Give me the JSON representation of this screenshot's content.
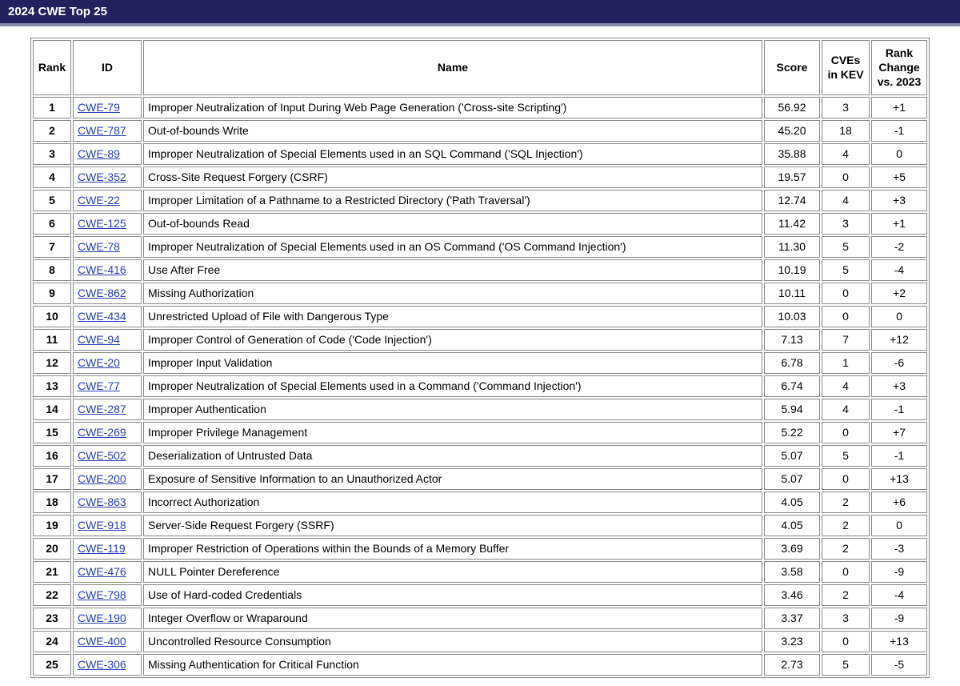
{
  "header": {
    "title": "2024 CWE Top 25"
  },
  "table": {
    "columns": {
      "rank": "Rank",
      "id": "ID",
      "name": "Name",
      "score": "Score",
      "kev": "CVEs in KEV",
      "change": "Rank Change vs. 2023"
    },
    "rows": [
      {
        "rank": "1",
        "id": "CWE-79",
        "name": "Improper Neutralization of Input During Web Page Generation ('Cross-site Scripting')",
        "score": "56.92",
        "kev": "3",
        "change": "+1"
      },
      {
        "rank": "2",
        "id": "CWE-787",
        "name": "Out-of-bounds Write",
        "score": "45.20",
        "kev": "18",
        "change": "-1"
      },
      {
        "rank": "3",
        "id": "CWE-89",
        "name": "Improper Neutralization of Special Elements used in an SQL Command ('SQL Injection')",
        "score": "35.88",
        "kev": "4",
        "change": "0"
      },
      {
        "rank": "4",
        "id": "CWE-352",
        "name": "Cross-Site Request Forgery (CSRF)",
        "score": "19.57",
        "kev": "0",
        "change": "+5"
      },
      {
        "rank": "5",
        "id": "CWE-22",
        "name": "Improper Limitation of a Pathname to a Restricted Directory ('Path Traversal')",
        "score": "12.74",
        "kev": "4",
        "change": "+3"
      },
      {
        "rank": "6",
        "id": "CWE-125",
        "name": "Out-of-bounds Read",
        "score": "11.42",
        "kev": "3",
        "change": "+1"
      },
      {
        "rank": "7",
        "id": "CWE-78",
        "name": "Improper Neutralization of Special Elements used in an OS Command ('OS Command Injection')",
        "score": "11.30",
        "kev": "5",
        "change": "-2"
      },
      {
        "rank": "8",
        "id": "CWE-416",
        "name": "Use After Free",
        "score": "10.19",
        "kev": "5",
        "change": "-4"
      },
      {
        "rank": "9",
        "id": "CWE-862",
        "name": "Missing Authorization",
        "score": "10.11",
        "kev": "0",
        "change": "+2"
      },
      {
        "rank": "10",
        "id": "CWE-434",
        "name": "Unrestricted Upload of File with Dangerous Type",
        "score": "10.03",
        "kev": "0",
        "change": "0"
      },
      {
        "rank": "11",
        "id": "CWE-94",
        "name": "Improper Control of Generation of Code ('Code Injection')",
        "score": "7.13",
        "kev": "7",
        "change": "+12"
      },
      {
        "rank": "12",
        "id": "CWE-20",
        "name": "Improper Input Validation",
        "score": "6.78",
        "kev": "1",
        "change": "-6"
      },
      {
        "rank": "13",
        "id": "CWE-77",
        "name": "Improper Neutralization of Special Elements used in a Command ('Command Injection')",
        "score": "6.74",
        "kev": "4",
        "change": "+3"
      },
      {
        "rank": "14",
        "id": "CWE-287",
        "name": "Improper Authentication",
        "score": "5.94",
        "kev": "4",
        "change": "-1"
      },
      {
        "rank": "15",
        "id": "CWE-269",
        "name": "Improper Privilege Management",
        "score": "5.22",
        "kev": "0",
        "change": "+7"
      },
      {
        "rank": "16",
        "id": "CWE-502",
        "name": "Deserialization of Untrusted Data",
        "score": "5.07",
        "kev": "5",
        "change": "-1"
      },
      {
        "rank": "17",
        "id": "CWE-200",
        "name": "Exposure of Sensitive Information to an Unauthorized Actor",
        "score": "5.07",
        "kev": "0",
        "change": "+13"
      },
      {
        "rank": "18",
        "id": "CWE-863",
        "name": "Incorrect Authorization",
        "score": "4.05",
        "kev": "2",
        "change": "+6"
      },
      {
        "rank": "19",
        "id": "CWE-918",
        "name": "Server-Side Request Forgery (SSRF)",
        "score": "4.05",
        "kev": "2",
        "change": "0"
      },
      {
        "rank": "20",
        "id": "CWE-119",
        "name": "Improper Restriction of Operations within the Bounds of a Memory Buffer",
        "score": "3.69",
        "kev": "2",
        "change": "-3"
      },
      {
        "rank": "21",
        "id": "CWE-476",
        "name": "NULL Pointer Dereference",
        "score": "3.58",
        "kev": "0",
        "change": "-9"
      },
      {
        "rank": "22",
        "id": "CWE-798",
        "name": "Use of Hard-coded Credentials",
        "score": "3.46",
        "kev": "2",
        "change": "-4"
      },
      {
        "rank": "23",
        "id": "CWE-190",
        "name": "Integer Overflow or Wraparound",
        "score": "3.37",
        "kev": "3",
        "change": "-9"
      },
      {
        "rank": "24",
        "id": "CWE-400",
        "name": "Uncontrolled Resource Consumption",
        "score": "3.23",
        "kev": "0",
        "change": "+13"
      },
      {
        "rank": "25",
        "id": "CWE-306",
        "name": "Missing Authentication for Critical Function",
        "score": "2.73",
        "kev": "5",
        "change": "-5"
      }
    ]
  },
  "colors": {
    "header_bg": "#21215e",
    "header_border": "#8a8ab0",
    "link": "#2a3db8",
    "cell_border": "#888888"
  }
}
